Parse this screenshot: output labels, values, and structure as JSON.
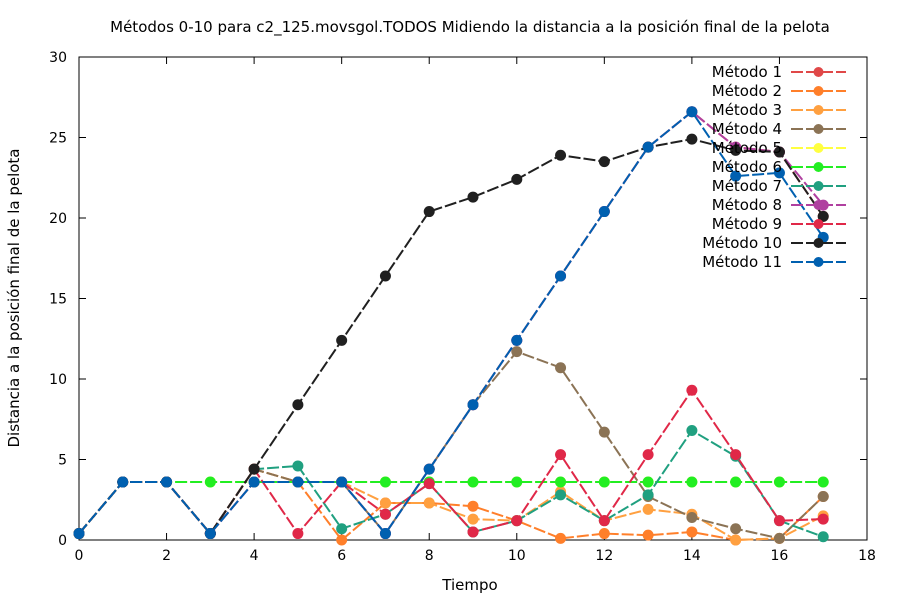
{
  "chart_data": {
    "type": "line",
    "title": "Métodos 0-10 para c2_125.movsgol.TODOS Midiendo la distancia a la posición final de la pelota",
    "xlabel": "Tiempo",
    "ylabel": "Distancia a la posición final de la pelota",
    "xlim": [
      0,
      18
    ],
    "ylim": [
      0,
      30
    ],
    "x_ticks": [
      0,
      2,
      4,
      6,
      8,
      10,
      12,
      14,
      16,
      18
    ],
    "y_ticks": [
      0,
      5,
      10,
      15,
      20,
      25,
      30
    ],
    "grid": false,
    "legend_position": "top-right",
    "x": [
      0,
      1,
      2,
      3,
      4,
      5,
      6,
      7,
      8,
      9,
      10,
      11,
      12,
      13,
      14,
      15,
      16,
      17
    ],
    "series": [
      {
        "name": "Método 1",
        "color": "#e04848",
        "values": [
          0.4,
          3.6,
          3.6,
          0.4,
          3.6,
          3.6,
          3.6,
          0.4,
          4.4,
          8.4,
          12.4,
          16.4,
          20.4,
          24.4,
          26.6,
          24.4,
          24.1,
          20.1
        ]
      },
      {
        "name": "Método 2",
        "color": "#ff7f2a",
        "values": [
          0.4,
          3.6,
          3.6,
          0.4,
          4.4,
          3.6,
          0.0,
          2.3,
          2.3,
          2.1,
          1.2,
          0.1,
          0.4,
          0.3,
          0.5,
          0.0,
          0.1,
          2.7
        ]
      },
      {
        "name": "Método 3",
        "color": "#ffa040",
        "values": [
          0.4,
          3.6,
          3.6,
          0.4,
          4.4,
          3.6,
          3.6,
          2.3,
          2.3,
          1.3,
          1.2,
          3.0,
          1.2,
          1.9,
          1.6,
          0.0,
          0.1,
          1.5
        ]
      },
      {
        "name": "Método 4",
        "color": "#8b7355",
        "values": [
          0.4,
          3.6,
          3.6,
          0.4,
          4.4,
          3.6,
          3.6,
          0.4,
          4.4,
          8.4,
          11.7,
          10.7,
          6.7,
          2.7,
          1.4,
          0.7,
          0.1,
          2.7
        ]
      },
      {
        "name": "Método 5",
        "color": "#ffff40",
        "values": [
          0.4,
          3.6,
          3.6,
          3.6,
          3.6,
          3.6,
          3.6,
          3.6,
          3.6,
          3.6,
          3.6,
          3.6,
          3.6,
          3.6,
          3.6,
          3.6,
          3.6,
          3.6
        ]
      },
      {
        "name": "Método 6",
        "color": "#22ee22",
        "values": [
          0.4,
          3.6,
          3.6,
          3.6,
          3.6,
          3.6,
          3.6,
          3.6,
          3.6,
          3.6,
          3.6,
          3.6,
          3.6,
          3.6,
          3.6,
          3.6,
          3.6,
          3.6
        ]
      },
      {
        "name": "Método 7",
        "color": "#20a080",
        "values": [
          0.4,
          3.6,
          3.6,
          0.4,
          4.4,
          4.6,
          0.7,
          1.6,
          3.5,
          0.5,
          1.2,
          2.8,
          1.2,
          2.8,
          6.8,
          5.2,
          1.2,
          0.2
        ]
      },
      {
        "name": "Método 8",
        "color": "#b040a0",
        "values": [
          0.4,
          3.6,
          3.6,
          0.4,
          3.6,
          3.6,
          3.6,
          0.4,
          4.4,
          8.4,
          12.4,
          16.4,
          20.4,
          24.4,
          26.6,
          24.4,
          24.1,
          20.8
        ]
      },
      {
        "name": "Método 9",
        "color": "#e02848",
        "values": [
          0.4,
          3.6,
          3.6,
          0.4,
          4.4,
          0.4,
          3.6,
          1.6,
          3.5,
          0.5,
          1.2,
          5.3,
          1.2,
          5.3,
          9.3,
          5.3,
          1.2,
          1.3
        ]
      },
      {
        "name": "Método 10",
        "color": "#202020",
        "values": [
          0.4,
          3.6,
          3.6,
          0.4,
          4.4,
          8.4,
          12.4,
          16.4,
          20.4,
          21.3,
          22.4,
          23.9,
          23.5,
          24.4,
          24.9,
          24.2,
          24.1,
          20.1
        ]
      },
      {
        "name": "Método 11",
        "color": "#0060b0",
        "values": [
          0.4,
          3.6,
          3.6,
          0.4,
          3.6,
          3.6,
          3.6,
          0.4,
          4.4,
          8.4,
          12.4,
          16.4,
          20.4,
          24.4,
          26.6,
          22.6,
          22.8,
          18.8
        ]
      }
    ]
  }
}
